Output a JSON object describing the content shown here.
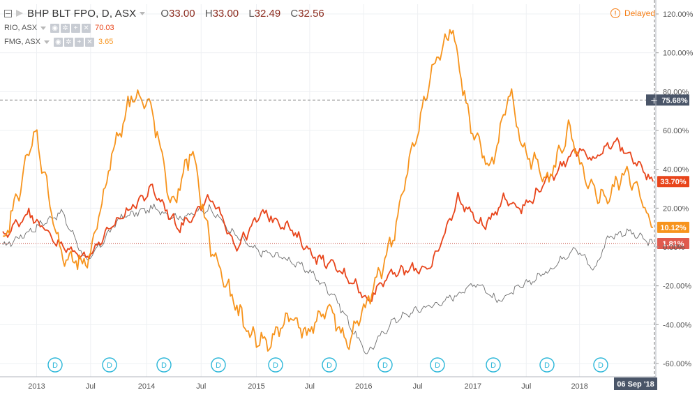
{
  "header": {
    "symbol": "BHP BLT FPO, D, ASX",
    "open_label": "O",
    "open": "33.00",
    "high_label": "H",
    "high": "33.00",
    "low_label": "L",
    "low": "32.49",
    "close_label": "C",
    "close": "32.56",
    "delayed": "Delayed"
  },
  "compare": [
    {
      "symbol": "RIO, ASX",
      "value": "70.03",
      "color": "#e8451b"
    },
    {
      "symbol": "FMG, ASX",
      "value": "3.65",
      "color": "#f7941d"
    }
  ],
  "icons": {
    "eye": "eye-icon",
    "settings": "gear-icon",
    "add": "plus-icon",
    "close": "close-icon"
  },
  "chart_data": {
    "type": "line",
    "y_axis": {
      "ticks": [
        "120.00%",
        "100.00%",
        "80.00%",
        "60.00%",
        "40.00%",
        "20.00%",
        "0.00%",
        "-20.00%",
        "-40.00%",
        "-60.00%"
      ],
      "ylim": [
        -62,
        125
      ],
      "unit": "%"
    },
    "x_axis": {
      "ticks": [
        "2013",
        "Jul",
        "2014",
        "Jul",
        "2015",
        "Jul",
        "2016",
        "Jul",
        "2017",
        "Jul",
        "2018"
      ],
      "crosshair_date": "06 Sep '18"
    },
    "crosshair_value": "75.68%",
    "markers": [
      "D",
      "D",
      "D",
      "D",
      "D",
      "D",
      "D",
      "D",
      "D",
      "D",
      "D"
    ],
    "series": [
      {
        "name": "BHP BLT FPO",
        "color": "#6d6d6d",
        "last_label": "1.81%",
        "x": [
          0,
          0.05,
          0.09,
          0.13,
          0.18,
          0.23,
          0.27,
          0.32,
          0.35,
          0.39,
          0.43,
          0.47,
          0.51,
          0.54,
          0.56,
          0.6,
          0.64,
          0.68,
          0.73,
          0.76,
          0.8,
          0.84,
          0.88,
          0.91,
          0.93,
          0.96,
          1.0
        ],
        "y": [
          0,
          10,
          18,
          -8,
          15,
          20,
          15,
          20,
          8,
          -2,
          -5,
          -12,
          -25,
          -44,
          -55,
          -38,
          -32,
          -28,
          -18,
          -28,
          -20,
          -12,
          0,
          -12,
          5,
          8,
          1.81
        ]
      },
      {
        "name": "RIO, ASX",
        "color": "#e8451b",
        "last_label": "33.70%",
        "x": [
          0,
          0.04,
          0.09,
          0.13,
          0.18,
          0.23,
          0.27,
          0.32,
          0.36,
          0.4,
          0.44,
          0.48,
          0.51,
          0.54,
          0.56,
          0.59,
          0.62,
          0.66,
          0.7,
          0.74,
          0.77,
          0.8,
          0.84,
          0.88,
          0.91,
          0.94,
          0.97,
          1.0
        ],
        "y": [
          5,
          18,
          0,
          -5,
          15,
          30,
          10,
          25,
          0,
          18,
          10,
          -5,
          -10,
          -18,
          -28,
          -15,
          -12,
          -10,
          25,
          10,
          25,
          20,
          35,
          50,
          45,
          55,
          45,
          33.7
        ]
      },
      {
        "name": "FMG, ASX",
        "color": "#f7941d",
        "last_label": "10.12%",
        "x": [
          0,
          0.05,
          0.09,
          0.13,
          0.17,
          0.2,
          0.23,
          0.26,
          0.29,
          0.32,
          0.35,
          0.38,
          0.41,
          0.44,
          0.47,
          0.5,
          0.53,
          0.56,
          0.6,
          0.63,
          0.66,
          0.69,
          0.72,
          0.75,
          0.78,
          0.8,
          0.84,
          0.87,
          0.9,
          0.93,
          0.96,
          1.0
        ],
        "y": [
          0,
          60,
          -5,
          -10,
          50,
          80,
          70,
          20,
          50,
          0,
          -25,
          -45,
          -50,
          -35,
          -45,
          -30,
          -50,
          -30,
          5,
          50,
          90,
          115,
          60,
          40,
          80,
          50,
          35,
          60,
          30,
          25,
          40,
          10.12
        ]
      }
    ],
    "guides": {
      "dashed_value": 75.68,
      "dotted_value": 1.81
    }
  }
}
